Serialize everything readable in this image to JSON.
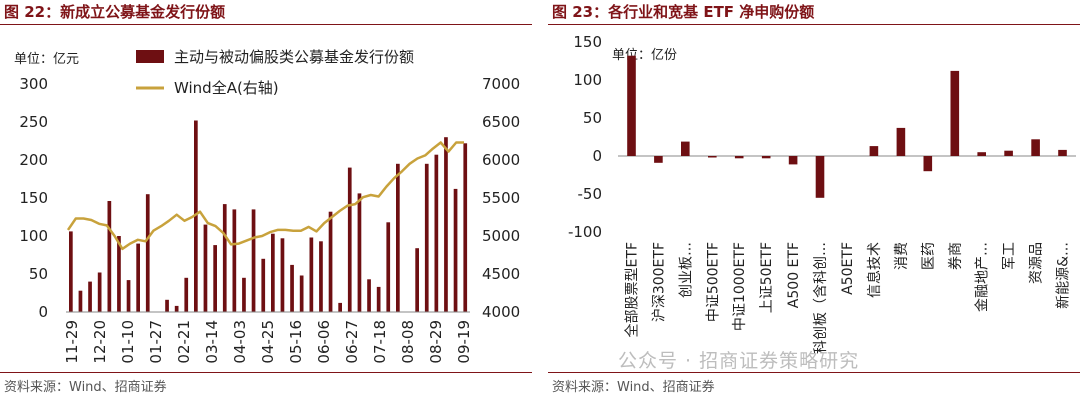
{
  "left": {
    "title": "图 22：新成立公募基金发行份额",
    "source": "资料来源：Wind、招商证券",
    "unit": "单位：亿元",
    "chart_data": {
      "type": "bar",
      "ylim": [
        0,
        300
      ],
      "y2lim": [
        4000,
        7000
      ],
      "yticks": [
        "0",
        "50",
        "100",
        "150",
        "200",
        "250",
        "300"
      ],
      "y2ticks": [
        "4000",
        "4500",
        "5000",
        "5500",
        "6000",
        "6500",
        "7000"
      ],
      "xticks": [
        "11-29",
        "12-20",
        "01-10",
        "01-27",
        "02-21",
        "03-14",
        "04-03",
        "04-25",
        "05-16",
        "06-06",
        "06-27",
        "07-18",
        "08-08",
        "08-29",
        "09-19"
      ],
      "series": [
        {
          "name": "主动与被动偏股类公募基金发行份额",
          "axis": "left",
          "values": [
            106,
            28,
            40,
            52,
            146,
            100,
            42,
            90,
            155,
            0,
            16,
            8,
            45,
            252,
            115,
            88,
            142,
            135,
            45,
            135,
            70,
            103,
            97,
            62,
            48,
            98,
            93,
            132,
            12,
            190,
            156,
            43,
            33,
            118,
            195,
            0,
            84,
            195,
            207,
            230,
            162,
            222
          ]
        },
        {
          "name": "Wind全A(右轴)",
          "axis": "right",
          "values": [
            5080,
            5230,
            5230,
            5210,
            5160,
            5140,
            5000,
            4830,
            4900,
            4950,
            4930,
            5070,
            5130,
            5200,
            5280,
            5200,
            5250,
            5320,
            5170,
            5130,
            5040,
            4890,
            4900,
            4940,
            4980,
            5000,
            5050,
            5080,
            5080,
            5070,
            5070,
            5120,
            5060,
            5170,
            5250,
            5330,
            5400,
            5420,
            5510,
            5540,
            5520,
            5650,
            5760,
            5850,
            5950,
            6020,
            6060,
            6150,
            6230,
            6110,
            6230,
            6230
          ]
        }
      ]
    }
  },
  "right": {
    "title": "图 23：各行业和宽基 ETF 净申购份额",
    "source": "资料来源：Wind、招商证券",
    "unit": "单位：亿份",
    "watermark": "公众号 · 招商证券策略研究",
    "chart_data": {
      "type": "bar",
      "ylim": [
        -100,
        150
      ],
      "yticks": [
        "-100",
        "-50",
        "0",
        "50",
        "100",
        "150"
      ],
      "categories": [
        "全部股票型ETF",
        "沪深300ETF",
        "创业板…",
        "中证500ETF",
        "中证1000ETF",
        "上证50ETF",
        "A500 ETF",
        "科创板（含科创…",
        "A50ETF",
        "信息技术",
        "消费",
        "医药",
        "券商",
        "金融地产…",
        "军工",
        "资源品",
        "新能源&…"
      ],
      "values": [
        132,
        -9,
        19,
        -2,
        -3,
        -3,
        -11,
        -55,
        0,
        13,
        37,
        -20,
        112,
        5,
        7,
        22,
        8
      ]
    }
  },
  "colors": {
    "bar": "#6e0f12",
    "line": "#c8a23c",
    "title": "#7f1418"
  }
}
